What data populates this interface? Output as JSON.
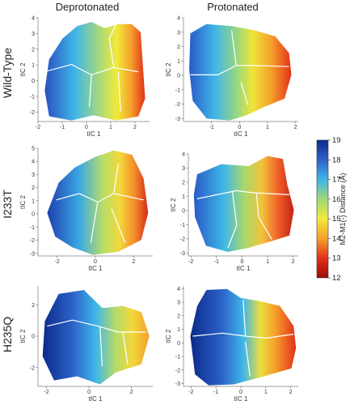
{
  "chart_data": {
    "type": "heatmap",
    "column_titles": [
      "Deprotonated",
      "Protonated"
    ],
    "row_titles": [
      "Wild-Type",
      "I233T",
      "H235Q"
    ],
    "xlabel": "tIC 1",
    "ylabel": "tIC 2",
    "colorbar": {
      "label": "M2-M1(-) Distance (Å)",
      "range": [
        12,
        19
      ],
      "ticks": [
        "19",
        "18",
        "17",
        "16",
        "15",
        "14",
        "13",
        "12"
      ],
      "colors": [
        "#0b2a8a",
        "#2d62c9",
        "#3fb6e8",
        "#9fd97a",
        "#f2ea3a",
        "#f6a12b",
        "#e2301a",
        "#9e0a0a"
      ]
    },
    "panels": [
      {
        "row": "Wild-Type",
        "col": "Deprotonated",
        "xticks": [
          "-2",
          "-1",
          "0",
          "1",
          "2"
        ],
        "xlim": [
          -2.0,
          2.6
        ],
        "yticks": [
          "4",
          "3",
          "2",
          "1",
          "0",
          "-1",
          "-2"
        ],
        "ylim": [
          -2.6,
          4.0
        ]
      },
      {
        "row": "Wild-Type",
        "col": "Protonated",
        "xticks": [
          "-1",
          "0",
          "1",
          "2"
        ],
        "xlim": [
          -2.0,
          2.1
        ],
        "yticks": [
          "4",
          "3",
          "2",
          "1",
          "0",
          "-1",
          "-2",
          "-3"
        ],
        "ylim": [
          -3.2,
          4.0
        ]
      },
      {
        "row": "I233T",
        "col": "Deprotonated",
        "xticks": [
          "-2",
          "0",
          "2"
        ],
        "xlim": [
          -3.0,
          3.0
        ],
        "yticks": [
          "5",
          "4",
          "3",
          "2",
          "1",
          "0",
          "-1",
          "-2",
          "-3"
        ],
        "ylim": [
          -3.2,
          5.0
        ]
      },
      {
        "row": "I233T",
        "col": "Protonated",
        "xticks": [
          "-2",
          "-1",
          "0",
          "1",
          "2"
        ],
        "xlim": [
          -2.1,
          2.2
        ],
        "yticks": [
          "4",
          "3",
          "2",
          "1",
          "0",
          "-1",
          "-2",
          "-3"
        ],
        "ylim": [
          -3.2,
          4.0
        ]
      },
      {
        "row": "H235Q",
        "col": "Deprotonated",
        "xticks": [
          "-2",
          "0",
          "2"
        ],
        "xlim": [
          -2.4,
          3.0
        ],
        "yticks": [
          "2",
          "0",
          "-2"
        ],
        "ylim": [
          -3.2,
          3.2
        ]
      },
      {
        "row": "H235Q",
        "col": "Protonated",
        "xticks": [
          "-2",
          "-1",
          "0",
          "1",
          "2"
        ],
        "xlim": [
          -2.3,
          2.3
        ],
        "yticks": [
          "4",
          "3",
          "2",
          "1",
          "0",
          "-1",
          "-2",
          "-3"
        ],
        "ylim": [
          -3.2,
          4.2
        ]
      }
    ]
  }
}
